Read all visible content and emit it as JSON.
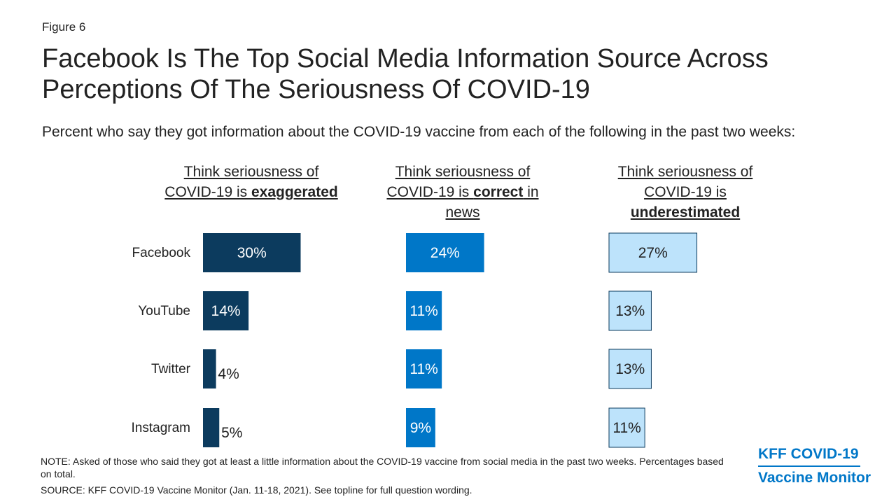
{
  "figure_label": "Figure 6",
  "title": "Facebook Is The Top Social Media Information Source Across Perceptions Of The Seriousness Of COVID-19",
  "subtitle": "Percent who say they got information about the COVID-19 vaccine from each of the following in the past two weeks:",
  "columns": [
    {
      "pre": "Think seriousness of COVID-19 is ",
      "emph": "exaggerated",
      "post": ""
    },
    {
      "pre": "Think seriousness of COVID-19 is ",
      "emph": "correct",
      "post": " in news"
    },
    {
      "pre": "Think seriousness of COVID-19 is ",
      "emph": "underestimated",
      "post": ""
    }
  ],
  "note": "NOTE: Asked of those who said they got at least a little information about the COVID-19 vaccine from social media in the past two weeks. Percentages based on total.",
  "source": "SOURCE: KFF COVID-19 Vaccine Monitor (Jan. 11-18, 2021). See topline for full question wording.",
  "logo": {
    "line1": "KFF COVID-19",
    "line2": "Vaccine Monitor"
  },
  "colors": {
    "exaggerated": "#0c3b5e",
    "correct": "#0077c8",
    "underestimated": "#bde3fb",
    "logo": "#0077c8"
  },
  "chart_data": {
    "type": "bar",
    "orientation": "horizontal",
    "categories": [
      "Facebook",
      "YouTube",
      "Twitter",
      "Instagram"
    ],
    "series": [
      {
        "name": "Think seriousness of COVID-19 is exaggerated",
        "values": [
          30,
          14,
          4,
          5
        ],
        "labels": [
          "30%",
          "14%",
          "4%",
          "5%"
        ]
      },
      {
        "name": "Think seriousness of COVID-19 is correct in news",
        "values": [
          24,
          11,
          11,
          9
        ],
        "labels": [
          "24%",
          "11%",
          "11%",
          "9%"
        ]
      },
      {
        "name": "Think seriousness of COVID-19 is underestimated",
        "values": [
          27,
          13,
          13,
          11
        ],
        "labels": [
          "27%",
          "13%",
          "13%",
          "11%"
        ]
      }
    ],
    "unit": "%",
    "grid": false,
    "legend": "none"
  }
}
